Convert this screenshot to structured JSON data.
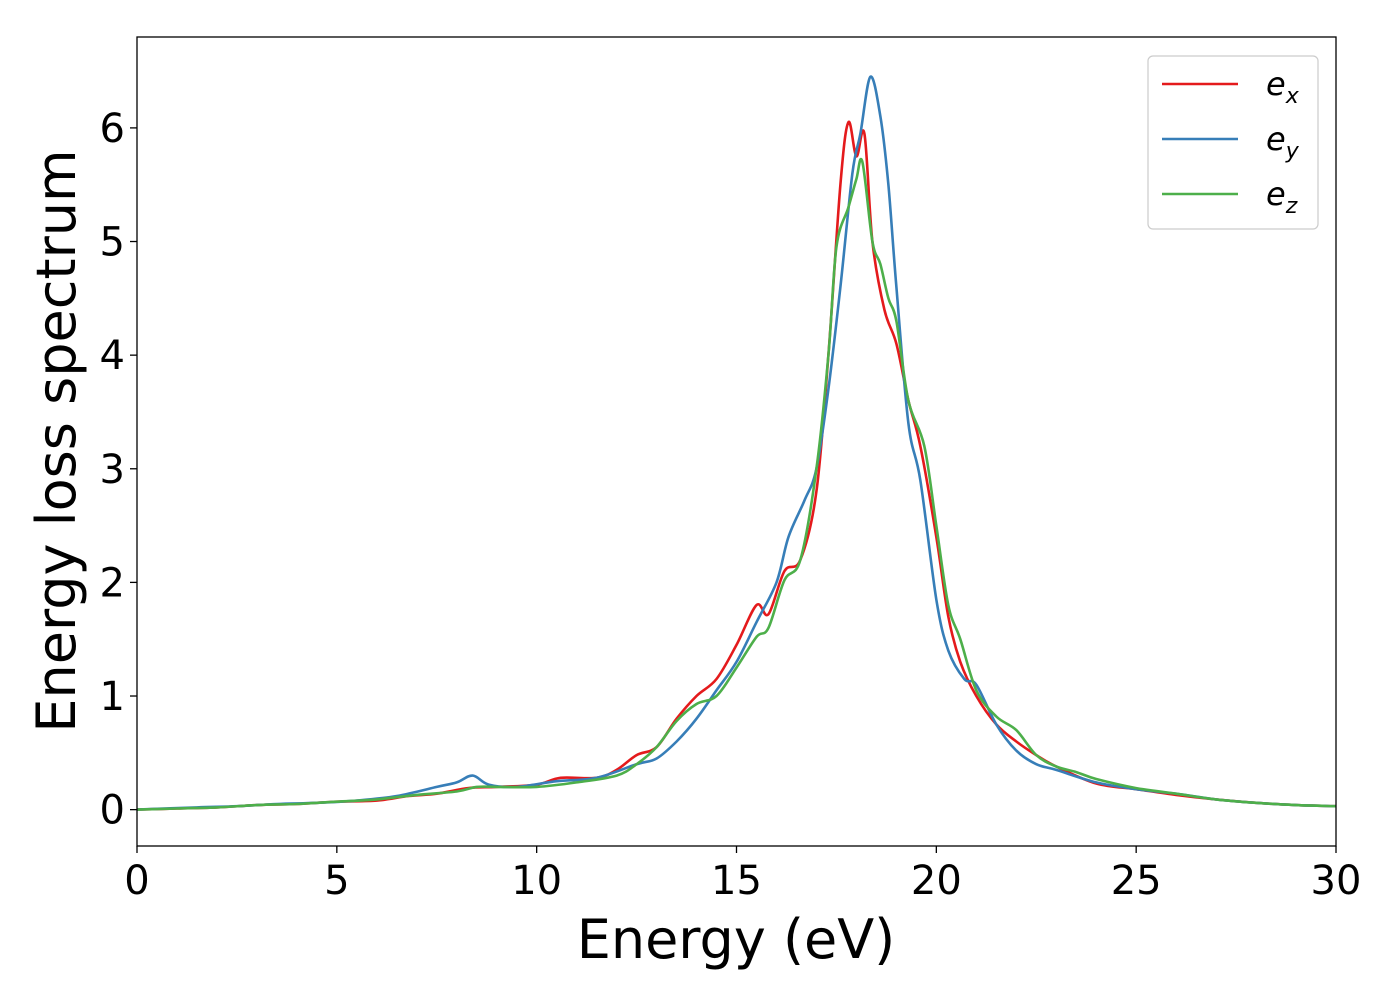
{
  "chart_data": {
    "type": "line",
    "title": "",
    "xlabel": "Energy (eV)",
    "ylabel": "Energy loss spectrum",
    "xlim": [
      0,
      30
    ],
    "ylim": [
      -0.32,
      6.8
    ],
    "xticks": [
      0,
      5,
      10,
      15,
      20,
      25,
      30
    ],
    "yticks": [
      0,
      1,
      2,
      3,
      4,
      5,
      6
    ],
    "xtick_labels": [
      "0",
      "5",
      "10",
      "15",
      "20",
      "25",
      "30"
    ],
    "ytick_labels": [
      "0",
      "1",
      "2",
      "3",
      "4",
      "5",
      "6"
    ],
    "grid": false,
    "legend_position": "top-right",
    "series": [
      {
        "name": "e_x",
        "label_base": "e",
        "label_sub": "x",
        "color": "#e41a1c",
        "points": [
          [
            0,
            0
          ],
          [
            1,
            0.01
          ],
          [
            2,
            0.02
          ],
          [
            3,
            0.04
          ],
          [
            4,
            0.05
          ],
          [
            5,
            0.07
          ],
          [
            6,
            0.08
          ],
          [
            6.8,
            0.12
          ],
          [
            7.5,
            0.14
          ],
          [
            8.3,
            0.19
          ],
          [
            9,
            0.2
          ],
          [
            10,
            0.22
          ],
          [
            10.6,
            0.28
          ],
          [
            11.5,
            0.28
          ],
          [
            12,
            0.35
          ],
          [
            12.5,
            0.48
          ],
          [
            13,
            0.55
          ],
          [
            13.5,
            0.8
          ],
          [
            14,
            1.0
          ],
          [
            14.5,
            1.15
          ],
          [
            15,
            1.45
          ],
          [
            15.5,
            1.8
          ],
          [
            15.8,
            1.72
          ],
          [
            16.2,
            2.1
          ],
          [
            16.6,
            2.2
          ],
          [
            17,
            2.8
          ],
          [
            17.3,
            4.0
          ],
          [
            17.6,
            5.5
          ],
          [
            17.8,
            6.05
          ],
          [
            18,
            5.75
          ],
          [
            18.2,
            5.95
          ],
          [
            18.4,
            5.0
          ],
          [
            18.7,
            4.4
          ],
          [
            19,
            4.1
          ],
          [
            19.3,
            3.6
          ],
          [
            19.6,
            3.2
          ],
          [
            20,
            2.4
          ],
          [
            20.3,
            1.7
          ],
          [
            20.6,
            1.3
          ],
          [
            21,
            1.0
          ],
          [
            21.5,
            0.75
          ],
          [
            22,
            0.6
          ],
          [
            22.5,
            0.48
          ],
          [
            23,
            0.38
          ],
          [
            24,
            0.23
          ],
          [
            25,
            0.18
          ],
          [
            26,
            0.13
          ],
          [
            27,
            0.09
          ],
          [
            28,
            0.06
          ],
          [
            29,
            0.04
          ],
          [
            30,
            0.03
          ]
        ]
      },
      {
        "name": "e_y",
        "label_base": "e",
        "label_sub": "y",
        "color": "#377eb8",
        "points": [
          [
            0,
            0
          ],
          [
            1.5,
            0.02
          ],
          [
            2.5,
            0.03
          ],
          [
            3.5,
            0.05
          ],
          [
            4.5,
            0.06
          ],
          [
            5.5,
            0.08
          ],
          [
            6.5,
            0.12
          ],
          [
            7.5,
            0.2
          ],
          [
            8,
            0.24
          ],
          [
            8.4,
            0.3
          ],
          [
            8.8,
            0.22
          ],
          [
            9.5,
            0.2
          ],
          [
            10.5,
            0.25
          ],
          [
            11.5,
            0.28
          ],
          [
            12.5,
            0.4
          ],
          [
            13,
            0.45
          ],
          [
            13.5,
            0.6
          ],
          [
            14,
            0.8
          ],
          [
            14.5,
            1.05
          ],
          [
            15,
            1.3
          ],
          [
            15.5,
            1.65
          ],
          [
            16,
            2.0
          ],
          [
            16.3,
            2.4
          ],
          [
            16.7,
            2.72
          ],
          [
            17,
            3.0
          ],
          [
            17.3,
            3.7
          ],
          [
            17.6,
            4.6
          ],
          [
            17.9,
            5.6
          ],
          [
            18.1,
            5.95
          ],
          [
            18.35,
            6.45
          ],
          [
            18.6,
            6.1
          ],
          [
            18.8,
            5.5
          ],
          [
            19,
            4.6
          ],
          [
            19.3,
            3.4
          ],
          [
            19.6,
            2.9
          ],
          [
            20,
            1.85
          ],
          [
            20.3,
            1.4
          ],
          [
            20.7,
            1.15
          ],
          [
            21,
            1.1
          ],
          [
            21.5,
            0.75
          ],
          [
            22,
            0.52
          ],
          [
            22.5,
            0.4
          ],
          [
            23,
            0.35
          ],
          [
            24,
            0.24
          ],
          [
            25,
            0.18
          ],
          [
            26,
            0.14
          ],
          [
            27,
            0.09
          ],
          [
            28,
            0.06
          ],
          [
            29,
            0.04
          ],
          [
            30,
            0.03
          ]
        ]
      },
      {
        "name": "e_z",
        "label_base": "e",
        "label_sub": "z",
        "color": "#4daf4a",
        "points": [
          [
            0,
            0
          ],
          [
            1,
            0.01
          ],
          [
            2,
            0.02
          ],
          [
            3,
            0.04
          ],
          [
            4,
            0.05
          ],
          [
            5,
            0.07
          ],
          [
            6,
            0.09
          ],
          [
            7,
            0.13
          ],
          [
            8,
            0.16
          ],
          [
            8.5,
            0.2
          ],
          [
            9,
            0.2
          ],
          [
            10,
            0.2
          ],
          [
            11,
            0.24
          ],
          [
            12,
            0.3
          ],
          [
            12.5,
            0.4
          ],
          [
            13,
            0.55
          ],
          [
            13.5,
            0.78
          ],
          [
            14,
            0.93
          ],
          [
            14.5,
            1.0
          ],
          [
            15,
            1.25
          ],
          [
            15.5,
            1.52
          ],
          [
            15.8,
            1.6
          ],
          [
            16.2,
            2.02
          ],
          [
            16.6,
            2.2
          ],
          [
            17,
            3.0
          ],
          [
            17.3,
            4.0
          ],
          [
            17.5,
            4.95
          ],
          [
            17.8,
            5.3
          ],
          [
            18,
            5.55
          ],
          [
            18.15,
            5.7
          ],
          [
            18.4,
            5.0
          ],
          [
            18.6,
            4.8
          ],
          [
            18.8,
            4.5
          ],
          [
            19,
            4.3
          ],
          [
            19.3,
            3.6
          ],
          [
            19.7,
            3.2
          ],
          [
            20,
            2.5
          ],
          [
            20.3,
            1.8
          ],
          [
            20.6,
            1.5
          ],
          [
            21,
            1.05
          ],
          [
            21.5,
            0.82
          ],
          [
            22,
            0.7
          ],
          [
            22.5,
            0.48
          ],
          [
            23,
            0.38
          ],
          [
            23.5,
            0.33
          ],
          [
            24,
            0.27
          ],
          [
            25,
            0.19
          ],
          [
            26,
            0.14
          ],
          [
            27,
            0.09
          ],
          [
            28,
            0.06
          ],
          [
            29,
            0.04
          ],
          [
            30,
            0.03
          ]
        ]
      }
    ]
  }
}
